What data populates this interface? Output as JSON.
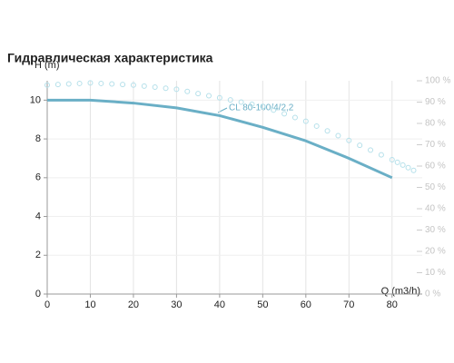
{
  "chart_data": {
    "type": "line",
    "title": "Гидравлическая характеристика",
    "x_label": "Q (m3/h)",
    "y_label": "H (m)",
    "x": [
      0,
      10,
      20,
      30,
      40,
      50,
      60,
      70,
      80,
      85
    ],
    "series": [
      {
        "name": "CL 80-100/4/2,2",
        "color": "#6aafc6",
        "values": [
          10,
          10,
          9.85,
          9.6,
          9.2,
          8.6,
          7.9,
          7.0,
          6.0,
          null
        ]
      },
      {
        "color": "#b5e0ea",
        "axis": "y2",
        "style": "dotted",
        "values": [
          98,
          99,
          98,
          96,
          92,
          88,
          81,
          72,
          63,
          58
        ]
      }
    ],
    "xlim": [
      0,
      87
    ],
    "xticks": [
      0,
      10,
      20,
      30,
      40,
      50,
      60,
      70,
      80
    ],
    "ylim": [
      0,
      11
    ],
    "yticks": [
      0,
      2,
      4,
      6,
      8,
      10
    ],
    "y2lim": [
      0,
      100
    ],
    "y2ticks": [
      {
        "value": 0,
        "label": "0 %"
      },
      {
        "value": 10,
        "label": "10 %"
      },
      {
        "value": 20,
        "label": "20 %"
      },
      {
        "value": 30,
        "label": "30 %"
      },
      {
        "value": 40,
        "label": "40 %"
      },
      {
        "value": 50,
        "label": "50 %"
      },
      {
        "value": 60,
        "label": "60 %"
      },
      {
        "value": 70,
        "label": "70 %"
      },
      {
        "value": 80,
        "label": "80 %"
      },
      {
        "value": 90,
        "label": "90 %"
      },
      {
        "value": 100,
        "label": "100 %"
      }
    ],
    "grid": true
  }
}
